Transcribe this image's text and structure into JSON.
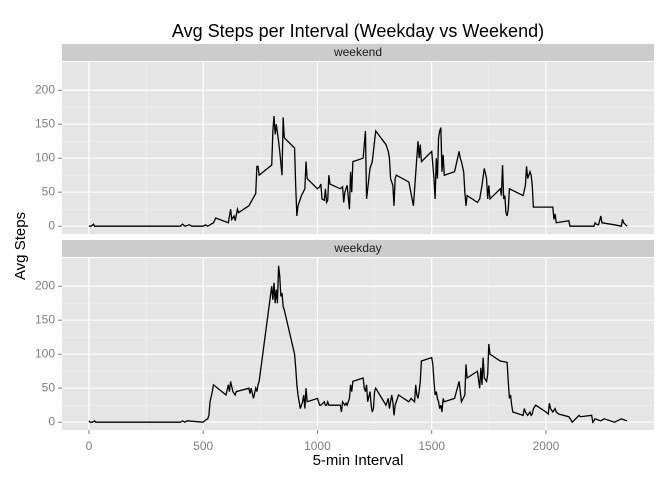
{
  "chart_data": {
    "type": "line",
    "title": "Avg Steps per Interval (Weekday vs Weekend)",
    "x_label": "5-min Interval",
    "y_label": "Avg Steps",
    "xlim": [
      -117.75,
      2472.75
    ],
    "ylim": [
      -11.5,
      241.5
    ],
    "xticks": [
      0,
      500,
      1000,
      1500,
      2000
    ],
    "yticks": [
      0,
      50,
      100,
      150,
      200
    ],
    "grid": true,
    "color": "#000000",
    "panels": [
      {
        "name": "weekend",
        "x": [
          0,
          10,
          20,
          25,
          100,
          200,
          300,
          400,
          410,
          420,
          440,
          450,
          500,
          510,
          520,
          545,
          555,
          610,
          620,
          625,
          635,
          640,
          650,
          655,
          700,
          730,
          735,
          740,
          745,
          800,
          805,
          810,
          815,
          820,
          830,
          835,
          845,
          850,
          855,
          900,
          905,
          910,
          915,
          930,
          945,
          950,
          955,
          1000,
          1010,
          1015,
          1020,
          1030,
          1035,
          1040,
          1045,
          1050,
          1055,
          1100,
          1110,
          1115,
          1120,
          1125,
          1130,
          1140,
          1145,
          1150,
          1155,
          1200,
          1210,
          1215,
          1220,
          1230,
          1240,
          1255,
          1300,
          1310,
          1315,
          1320,
          1330,
          1335,
          1340,
          1345,
          1400,
          1420,
          1440,
          1445,
          1450,
          1455,
          1500,
          1510,
          1515,
          1520,
          1525,
          1530,
          1535,
          1540,
          1545,
          1550,
          1555,
          1600,
          1610,
          1620,
          1625,
          1630,
          1640,
          1645,
          1650,
          1655,
          1700,
          1710,
          1720,
          1730,
          1740,
          1745,
          1750,
          1755,
          1800,
          1805,
          1810,
          1815,
          1820,
          1825,
          1830,
          1835,
          1840,
          1900,
          1910,
          1915,
          1920,
          1930,
          1935,
          1940,
          1945,
          2000,
          2010,
          2015,
          2030,
          2035,
          2040,
          2045,
          2100,
          2105,
          2200,
          2210,
          2215,
          2220,
          2230,
          2240,
          2245,
          2300,
          2330,
          2335,
          2340,
          2355
        ],
        "values": [
          0,
          0,
          3,
          0,
          0,
          0,
          0,
          0,
          3,
          0,
          2,
          0,
          0,
          2,
          0,
          5,
          12,
          5,
          25,
          10,
          15,
          8,
          25,
          20,
          30,
          48,
          88,
          88,
          75,
          90,
          140,
          162,
          135,
          150,
          125,
          110,
          75,
          160,
          130,
          115,
          58,
          15,
          30,
          45,
          55,
          95,
          70,
          55,
          58,
          62,
          40,
          38,
          55,
          35,
          38,
          75,
          62,
          55,
          58,
          35,
          50,
          55,
          60,
          25,
          80,
          50,
          95,
          100,
          140,
          40,
          55,
          85,
          95,
          140,
          120,
          110,
          100,
          70,
          60,
          30,
          70,
          75,
          65,
          30,
          125,
          100,
          120,
          95,
          110,
          70,
          40,
          100,
          70,
          130,
          140,
          145,
          80,
          105,
          75,
          80,
          95,
          110,
          100,
          95,
          80,
          50,
          30,
          45,
          35,
          40,
          60,
          85,
          70,
          40,
          60,
          40,
          55,
          45,
          90,
          40,
          45,
          20,
          15,
          25,
          55,
          45,
          60,
          88,
          70,
          80,
          75,
          60,
          28,
          28,
          28,
          28,
          28,
          10,
          18,
          5,
          8,
          0,
          0,
          0,
          5,
          3,
          2,
          15,
          5,
          2,
          0,
          10,
          5,
          0
        ]
      },
      {
        "name": "weekday",
        "x": [
          0,
          5,
          15,
          25,
          30,
          100,
          200,
          300,
          400,
          410,
          420,
          430,
          500,
          510,
          520,
          525,
          530,
          540,
          545,
          600,
          610,
          615,
          620,
          630,
          640,
          645,
          700,
          705,
          710,
          720,
          730,
          735,
          740,
          745,
          800,
          805,
          810,
          815,
          820,
          825,
          830,
          835,
          840,
          845,
          850,
          855,
          900,
          905,
          910,
          915,
          925,
          930,
          935,
          940,
          945,
          950,
          955,
          1000,
          1010,
          1015,
          1030,
          1035,
          1040,
          1045,
          1050,
          1055,
          1100,
          1105,
          1110,
          1120,
          1125,
          1130,
          1140,
          1145,
          1150,
          1155,
          1200,
          1205,
          1210,
          1215,
          1220,
          1230,
          1235,
          1240,
          1245,
          1250,
          1255,
          1300,
          1310,
          1315,
          1320,
          1325,
          1330,
          1335,
          1340,
          1350,
          1355,
          1400,
          1410,
          1425,
          1430,
          1435,
          1440,
          1445,
          1450,
          1455,
          1500,
          1505,
          1510,
          1515,
          1520,
          1525,
          1530,
          1535,
          1540,
          1545,
          1550,
          1555,
          1600,
          1620,
          1625,
          1630,
          1645,
          1650,
          1655,
          1700,
          1710,
          1715,
          1720,
          1725,
          1730,
          1740,
          1745,
          1750,
          1755,
          1800,
          1830,
          1835,
          1840,
          1845,
          1850,
          1855,
          1900,
          1905,
          1910,
          1920,
          1930,
          1935,
          1940,
          1945,
          1955,
          2000,
          2010,
          2015,
          2020,
          2030,
          2040,
          2045,
          2055,
          2100,
          2110,
          2115,
          2130,
          2145,
          2150,
          2200,
          2205,
          2215,
          2230,
          2240,
          2255,
          2300,
          2330,
          2345,
          2355
        ],
        "values": [
          2,
          0,
          0,
          2,
          0,
          0,
          0,
          0,
          0,
          2,
          0,
          2,
          0,
          3,
          5,
          10,
          30,
          45,
          55,
          40,
          55,
          45,
          60,
          45,
          40,
          45,
          50,
          42,
          50,
          35,
          50,
          45,
          55,
          60,
          200,
          180,
          205,
          175,
          195,
          175,
          230,
          215,
          185,
          190,
          170,
          165,
          100,
          80,
          55,
          40,
          20,
          25,
          30,
          40,
          20,
          50,
          30,
          35,
          25,
          25,
          30,
          25,
          25,
          30,
          25,
          25,
          25,
          15,
          30,
          25,
          28,
          25,
          35,
          55,
          45,
          60,
          65,
          50,
          45,
          55,
          30,
          45,
          25,
          15,
          20,
          45,
          50,
          25,
          35,
          20,
          30,
          40,
          30,
          10,
          25,
          35,
          40,
          30,
          35,
          30,
          55,
          40,
          35,
          45,
          60,
          90,
          95,
          85,
          60,
          40,
          45,
          35,
          30,
          20,
          25,
          15,
          35,
          30,
          35,
          60,
          45,
          30,
          40,
          85,
          65,
          75,
          50,
          80,
          55,
          95,
          65,
          60,
          70,
          115,
          100,
          90,
          88,
          60,
          35,
          40,
          25,
          15,
          10,
          20,
          15,
          10,
          15,
          10,
          12,
          20,
          25,
          15,
          12,
          28,
          20,
          15,
          20,
          15,
          12,
          8,
          3,
          0,
          5,
          10,
          8,
          10,
          0,
          5,
          3,
          2,
          5,
          0,
          5,
          3,
          2
        ]
      }
    ]
  }
}
